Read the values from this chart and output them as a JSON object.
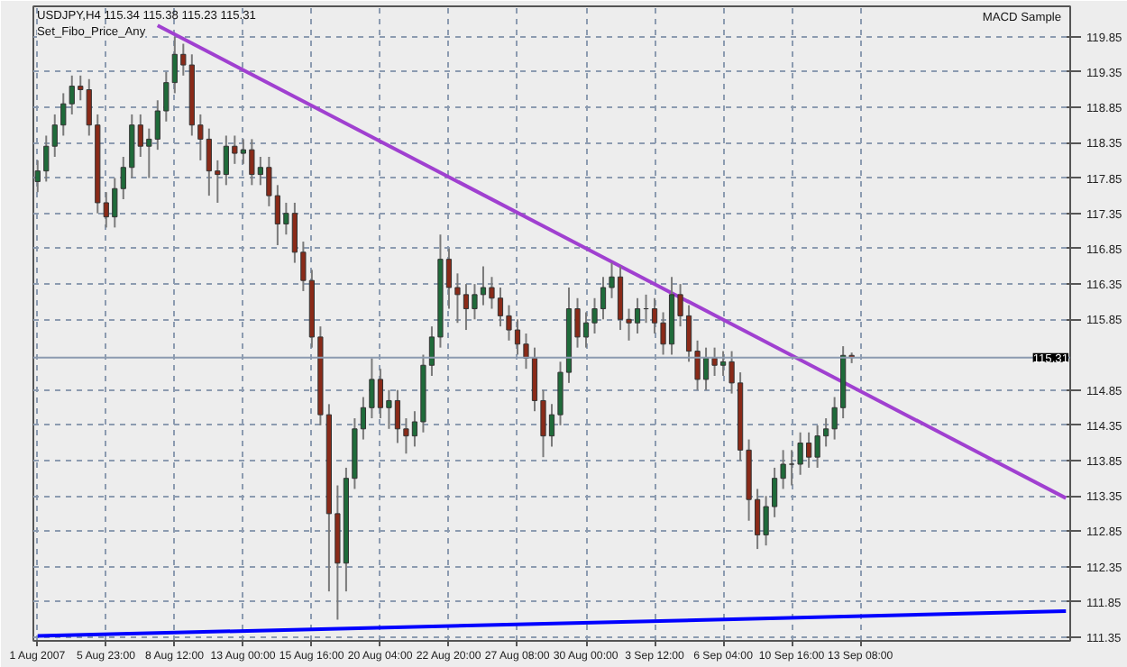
{
  "chart_data": {
    "type": "candlestick",
    "title": "USDJPY,H4  115.34 115.38 115.23 115.31",
    "annotations": [
      "Set_Fibo_Price_Any",
      "MACD Sample"
    ],
    "categories": [
      "1 Aug 2007",
      null,
      null,
      null,
      null,
      null,
      null,
      null,
      "5 Aug 23:00",
      null,
      null,
      null,
      null,
      null,
      null,
      null,
      "8 Aug 12:00",
      null,
      null,
      null,
      null,
      null,
      null,
      null,
      "13 Aug 00:00",
      null,
      null,
      null,
      null,
      null,
      null,
      null,
      "15 Aug 16:00",
      null,
      null,
      null,
      null,
      null,
      null,
      null,
      "20 Aug 04:00",
      null,
      null,
      null,
      null,
      null,
      null,
      null,
      "22 Aug 20:00",
      null,
      null,
      null,
      null,
      null,
      null,
      null,
      "27 Aug 08:00",
      null,
      null,
      null,
      null,
      null,
      null,
      null,
      "30 Aug 00:00",
      null,
      null,
      null,
      null,
      null,
      null,
      null,
      "3 Sep 12:00",
      null,
      null,
      null,
      null,
      null,
      null,
      null,
      "6 Sep 04:00",
      null,
      null,
      null,
      null,
      null,
      null,
      null,
      "10 Sep 16:00",
      null,
      null,
      null,
      null,
      null,
      null,
      null,
      "13 Sep 08:00",
      null,
      null,
      null,
      null,
      null,
      null,
      null,
      null,
      null,
      null,
      null,
      null,
      null,
      null,
      null,
      null,
      null,
      null,
      null,
      null,
      null,
      null,
      null,
      null
    ],
    "ohlc": [
      [
        117.8,
        118.1,
        117.65,
        117.95
      ],
      [
        117.95,
        118.45,
        117.8,
        118.3
      ],
      [
        118.3,
        118.75,
        118.15,
        118.6
      ],
      [
        118.6,
        119.05,
        118.45,
        118.9
      ],
      [
        118.9,
        119.3,
        118.75,
        119.15
      ],
      [
        119.15,
        119.3,
        118.95,
        119.1
      ],
      [
        119.1,
        119.25,
        118.45,
        118.6
      ],
      [
        118.6,
        118.75,
        117.35,
        117.5
      ],
      [
        117.5,
        117.65,
        117.15,
        117.3
      ],
      [
        117.3,
        117.85,
        117.15,
        117.7
      ],
      [
        117.7,
        118.15,
        117.55,
        118.0
      ],
      [
        118.0,
        118.75,
        117.85,
        118.6
      ],
      [
        118.6,
        118.75,
        118.15,
        118.3
      ],
      [
        118.3,
        118.55,
        117.85,
        118.4
      ],
      [
        118.4,
        118.95,
        118.25,
        118.8
      ],
      [
        118.8,
        119.35,
        118.65,
        119.2
      ],
      [
        119.2,
        119.85,
        119.05,
        119.6
      ],
      [
        119.6,
        119.75,
        119.3,
        119.45
      ],
      [
        119.45,
        119.6,
        118.45,
        118.6
      ],
      [
        118.6,
        118.75,
        118.1,
        118.4
      ],
      [
        118.4,
        118.55,
        117.6,
        117.95
      ],
      [
        117.95,
        118.1,
        117.5,
        117.9
      ],
      [
        117.9,
        118.45,
        117.75,
        118.3
      ],
      [
        118.3,
        118.45,
        118.05,
        118.2
      ],
      [
        118.2,
        118.4,
        118.05,
        118.25
      ],
      [
        118.25,
        118.4,
        117.75,
        117.9
      ],
      [
        117.9,
        118.15,
        117.75,
        118.0
      ],
      [
        118.0,
        118.15,
        117.45,
        117.6
      ],
      [
        117.6,
        117.75,
        116.9,
        117.2
      ],
      [
        117.2,
        117.5,
        117.05,
        117.35
      ],
      [
        117.35,
        117.5,
        116.65,
        116.8
      ],
      [
        116.8,
        116.95,
        116.25,
        116.4
      ],
      [
        116.4,
        116.55,
        115.45,
        115.6
      ],
      [
        115.6,
        115.75,
        114.35,
        114.5
      ],
      [
        114.5,
        114.65,
        112.0,
        113.1
      ],
      [
        113.1,
        113.5,
        111.6,
        112.4
      ],
      [
        112.4,
        113.75,
        112.0,
        113.6
      ],
      [
        113.6,
        114.45,
        113.45,
        114.3
      ],
      [
        114.3,
        114.75,
        114.15,
        114.6
      ],
      [
        114.6,
        115.3,
        114.45,
        115.0
      ],
      [
        115.0,
        115.15,
        114.45,
        114.6
      ],
      [
        114.6,
        114.85,
        114.3,
        114.7
      ],
      [
        114.7,
        114.85,
        114.1,
        114.3
      ],
      [
        114.3,
        114.45,
        113.95,
        114.2
      ],
      [
        114.2,
        114.55,
        114.05,
        114.4
      ],
      [
        114.4,
        115.35,
        114.25,
        115.2
      ],
      [
        115.2,
        115.75,
        115.05,
        115.6
      ],
      [
        115.6,
        117.05,
        115.45,
        116.7
      ],
      [
        116.7,
        116.85,
        116.0,
        116.3
      ],
      [
        116.3,
        116.5,
        115.8,
        116.2
      ],
      [
        116.2,
        116.35,
        115.7,
        116.0
      ],
      [
        116.0,
        116.35,
        115.85,
        116.2
      ],
      [
        116.2,
        116.6,
        116.05,
        116.3
      ],
      [
        116.3,
        116.45,
        116.0,
        116.15
      ],
      [
        116.15,
        116.3,
        115.75,
        115.9
      ],
      [
        115.9,
        116.05,
        115.55,
        115.7
      ],
      [
        115.7,
        115.85,
        115.35,
        115.5
      ],
      [
        115.5,
        115.65,
        115.15,
        115.3
      ],
      [
        115.3,
        115.45,
        114.55,
        114.7
      ],
      [
        114.7,
        114.85,
        113.9,
        114.2
      ],
      [
        114.2,
        114.65,
        114.05,
        114.5
      ],
      [
        114.5,
        115.25,
        114.35,
        115.1
      ],
      [
        115.1,
        116.3,
        114.95,
        116.0
      ],
      [
        116.0,
        116.15,
        115.45,
        115.6
      ],
      [
        115.6,
        115.95,
        115.45,
        115.8
      ],
      [
        115.8,
        116.15,
        115.65,
        116.0
      ],
      [
        116.0,
        116.45,
        115.85,
        116.3
      ],
      [
        116.3,
        116.65,
        116.15,
        116.45
      ],
      [
        116.45,
        116.6,
        115.7,
        115.85
      ],
      [
        115.85,
        116.0,
        115.55,
        115.8
      ],
      [
        115.8,
        116.15,
        115.65,
        116.0
      ],
      [
        116.0,
        116.2,
        115.8,
        116.0
      ],
      [
        116.0,
        116.15,
        115.65,
        115.8
      ],
      [
        115.8,
        115.95,
        115.35,
        115.5
      ],
      [
        115.5,
        116.45,
        115.35,
        116.2
      ],
      [
        116.2,
        116.35,
        115.75,
        115.9
      ],
      [
        115.9,
        116.05,
        115.25,
        115.4
      ],
      [
        115.4,
        115.55,
        114.85,
        115.0
      ],
      [
        115.0,
        115.45,
        114.85,
        115.3
      ],
      [
        115.3,
        115.45,
        115.05,
        115.2
      ],
      [
        115.2,
        115.4,
        115.05,
        115.25
      ],
      [
        115.25,
        115.4,
        114.8,
        114.95
      ],
      [
        114.95,
        115.1,
        113.85,
        114.0
      ],
      [
        114.0,
        114.15,
        113.0,
        113.3
      ],
      [
        113.3,
        113.45,
        112.6,
        112.8
      ],
      [
        112.8,
        113.35,
        112.65,
        113.2
      ],
      [
        113.2,
        113.75,
        113.05,
        113.6
      ],
      [
        113.6,
        114.0,
        113.45,
        113.8
      ],
      [
        113.8,
        114.0,
        113.5,
        113.8
      ],
      [
        113.8,
        114.25,
        113.65,
        114.1
      ],
      [
        114.1,
        114.25,
        113.75,
        113.9
      ],
      [
        113.9,
        114.35,
        113.75,
        114.2
      ],
      [
        114.2,
        114.45,
        114.05,
        114.3
      ],
      [
        114.3,
        114.75,
        114.15,
        114.6
      ],
      [
        114.6,
        115.47,
        114.45,
        115.34
      ],
      [
        115.34,
        115.38,
        115.23,
        115.31
      ],
      null,
      null,
      null,
      null,
      null,
      null,
      null,
      null,
      null,
      null,
      null,
      null,
      null,
      null,
      null,
      null,
      null,
      null,
      null,
      null,
      null,
      null,
      null,
      null,
      null
    ],
    "series": [
      {
        "type": "line",
        "color": "#a040d0",
        "values": [
          null,
          null,
          null,
          null,
          null,
          null,
          null,
          null,
          null,
          null,
          null,
          null,
          null,
          null,
          120.01,
          null,
          null,
          null,
          null,
          null,
          null,
          null,
          null,
          null,
          null,
          null,
          null,
          null,
          null,
          null,
          null,
          null,
          null,
          null,
          null,
          null,
          null,
          null,
          null,
          null,
          null,
          null,
          null,
          null,
          null,
          null,
          null,
          null,
          null,
          null,
          null,
          null,
          null,
          null,
          null,
          null,
          null,
          null,
          null,
          null,
          null,
          null,
          null,
          null,
          null,
          null,
          null,
          null,
          null,
          null,
          null,
          null,
          null,
          null,
          null,
          null,
          null,
          null,
          null,
          null,
          null,
          null,
          null,
          null,
          null,
          null,
          null,
          null,
          null,
          null,
          null,
          null,
          null,
          null,
          null,
          null,
          null,
          null,
          null,
          null,
          null,
          null,
          null,
          null,
          null,
          null,
          null,
          null,
          null,
          null,
          null,
          null,
          null,
          null,
          null,
          null,
          null,
          null,
          null,
          null,
          113.32
        ]
      },
      {
        "type": "line",
        "color": "#0000ff",
        "values": [
          111.37,
          null,
          null,
          null,
          null,
          null,
          null,
          null,
          null,
          null,
          null,
          null,
          null,
          null,
          null,
          null,
          null,
          null,
          null,
          null,
          null,
          null,
          null,
          null,
          null,
          null,
          null,
          null,
          null,
          null,
          null,
          null,
          null,
          null,
          null,
          null,
          null,
          null,
          null,
          null,
          null,
          null,
          null,
          null,
          null,
          null,
          null,
          null,
          null,
          null,
          null,
          null,
          null,
          null,
          null,
          null,
          null,
          null,
          null,
          null,
          null,
          null,
          null,
          null,
          null,
          null,
          null,
          null,
          null,
          null,
          null,
          null,
          null,
          null,
          null,
          null,
          null,
          null,
          null,
          null,
          null,
          null,
          null,
          null,
          null,
          null,
          null,
          null,
          null,
          null,
          null,
          null,
          null,
          null,
          null,
          null,
          null,
          null,
          null,
          null,
          null,
          null,
          null,
          null,
          null,
          null,
          null,
          null,
          null,
          null,
          null,
          null,
          null,
          null,
          null,
          null,
          null,
          null,
          null,
          null,
          111.72
        ]
      }
    ],
    "ref_lines": [
      {
        "axis": "y",
        "value": 115.31,
        "label": "115.31",
        "color": "#8c9bb0"
      }
    ],
    "ylim": [
      111.3,
      120.28
    ],
    "yticks": [
      111.35,
      111.85,
      112.35,
      112.85,
      113.35,
      113.85,
      114.35,
      114.85,
      115.85,
      116.35,
      116.85,
      117.35,
      117.85,
      118.35,
      118.85,
      119.35,
      119.85
    ],
    "grid": true
  }
}
